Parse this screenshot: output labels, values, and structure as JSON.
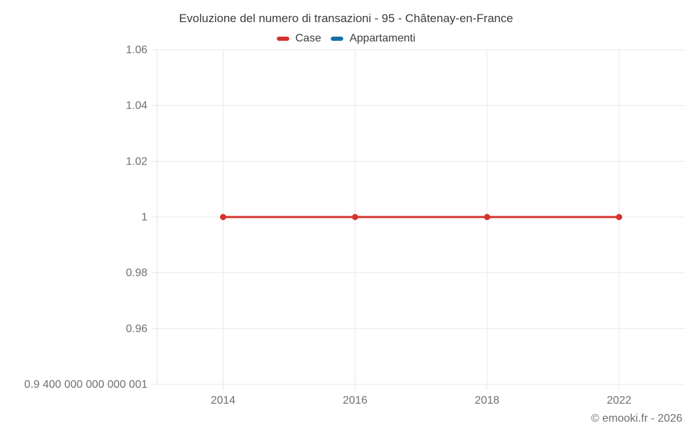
{
  "title": "Evoluzione del numero di transazioni - 95 - Châtenay-en-France",
  "watermark": "© emooki.fr - 2026",
  "legend": {
    "items": [
      {
        "label": "Case",
        "color": "#d5312d"
      },
      {
        "label": "Appartamenti",
        "color": "#1370a3"
      }
    ]
  },
  "chart_data": {
    "type": "line",
    "title": "Evoluzione del numero di transazioni - 95 - Châtenay-en-France",
    "categories": [
      "2014",
      "2016",
      "2018",
      "2022"
    ],
    "series": [
      {
        "name": "Case",
        "color": "#d5312d",
        "values": [
          1,
          1,
          1,
          1
        ]
      },
      {
        "name": "Appartamenti",
        "color": "#1370a3",
        "values": []
      }
    ],
    "yticks": [
      {
        "label": "0.9 400 000 000 000 001",
        "value": 0.94
      },
      {
        "label": "0.96",
        "value": 0.96
      },
      {
        "label": "0.98",
        "value": 0.98
      },
      {
        "label": "1",
        "value": 1
      },
      {
        "label": "1.02",
        "value": 1.02
      },
      {
        "label": "1.04",
        "value": 1.04
      },
      {
        "label": "1.06",
        "value": 1.06
      }
    ],
    "ylim": [
      0.94,
      1.06
    ],
    "grid": true,
    "legend_position": "top",
    "xlabel": "",
    "ylabel": "",
    "colors": {
      "grid": "#e8e8e8",
      "axis": "#e3e3e3",
      "tick_text": "#6f6f6f",
      "title_text": "#3c3c3c"
    }
  }
}
